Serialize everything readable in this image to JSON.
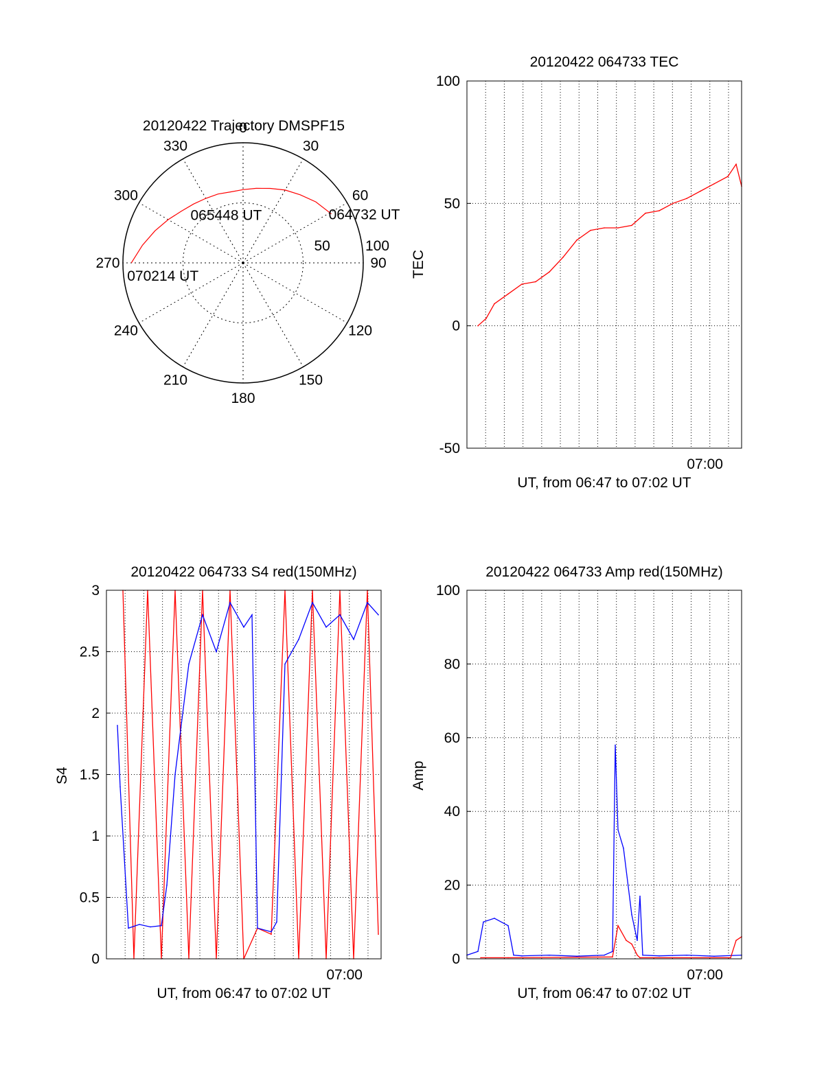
{
  "colors": {
    "red": "#ff0000",
    "blue": "#0000ff",
    "axis": "#000000"
  },
  "chart_data": [
    {
      "type": "polar",
      "title": "20120422 Trajectory DMSPF15",
      "angle_ticks": [
        "0",
        "30",
        "60",
        "90",
        "120",
        "150",
        "180",
        "210",
        "240",
        "270",
        "300",
        "330"
      ],
      "radial_ticks": [
        "50",
        "100"
      ],
      "trajectory": {
        "color": "#ff0000",
        "azimuth_deg": [
          61,
          50,
          40,
          30,
          20,
          10,
          0,
          -10,
          -20,
          -30,
          -40,
          -50,
          -60,
          -70,
          -80,
          -90
        ],
        "radius": [
          84,
          79,
          74,
          70,
          66,
          63,
          61,
          60,
          61,
          62,
          64,
          67,
          72,
          78,
          85,
          93
        ]
      },
      "annotations": [
        {
          "text": "064732 UT",
          "point": "start"
        },
        {
          "text": "065448 UT",
          "point": "middle"
        },
        {
          "text": "070214 UT",
          "point": "end"
        }
      ]
    },
    {
      "type": "line",
      "title": "20120422 064733 TEC",
      "ylabel": "TEC",
      "xlabel": "UT, from 06:47 to 07:02 UT",
      "x_ticks": [
        "07:00"
      ],
      "ylim": [
        -50,
        100
      ],
      "y_ticks": [
        -50,
        0,
        50,
        100
      ],
      "grid": true,
      "series": [
        {
          "color": "#ff0000",
          "x": [
            0.04,
            0.07,
            0.1,
            0.15,
            0.2,
            0.25,
            0.3,
            0.35,
            0.4,
            0.45,
            0.5,
            0.55,
            0.6,
            0.65,
            0.7,
            0.75,
            0.8,
            0.85,
            0.9,
            0.95,
            0.98,
            1.0
          ],
          "values": [
            0,
            3,
            9,
            13,
            17,
            18,
            22,
            28,
            35,
            39,
            40,
            40,
            41,
            46,
            47,
            50,
            52,
            55,
            58,
            61,
            66,
            57
          ]
        }
      ]
    },
    {
      "type": "line",
      "title": "20120422 064733 S4 red(150MHz)",
      "ylabel": "S4",
      "xlabel": "UT, from 06:47 to 07:02 UT",
      "x_ticks": [
        "07:00"
      ],
      "ylim": [
        0,
        3
      ],
      "y_ticks": [
        "0",
        "0.5",
        "1",
        "1.5",
        "2",
        "2.5",
        "3"
      ],
      "grid": true,
      "series": [
        {
          "color": "#ff0000",
          "x": [
            0.06,
            0.1,
            0.15,
            0.2,
            0.25,
            0.3,
            0.35,
            0.4,
            0.45,
            0.5,
            0.55,
            0.6,
            0.65,
            0.7,
            0.75,
            0.8,
            0.85,
            0.9,
            0.95,
            0.99
          ],
          "values": [
            3,
            0,
            3,
            0,
            3,
            0,
            3,
            0,
            3,
            0,
            0.25,
            0.2,
            3,
            0,
            3,
            0,
            3,
            0,
            3,
            0.2
          ]
        },
        {
          "color": "#0000ff",
          "x": [
            0.04,
            0.05,
            0.08,
            0.12,
            0.16,
            0.2,
            0.22,
            0.25,
            0.3,
            0.35,
            0.4,
            0.45,
            0.5,
            0.53,
            0.55,
            0.6,
            0.62,
            0.65,
            0.7,
            0.75,
            0.8,
            0.85,
            0.9,
            0.95,
            0.99
          ],
          "values": [
            1.9,
            1.4,
            0.25,
            0.28,
            0.26,
            0.27,
            0.6,
            1.5,
            2.4,
            2.8,
            2.5,
            2.9,
            2.7,
            2.8,
            0.25,
            0.22,
            0.3,
            2.4,
            2.6,
            2.9,
            2.7,
            2.8,
            2.6,
            2.9,
            2.8
          ]
        }
      ]
    },
    {
      "type": "line",
      "title": "20120422 064733 Amp red(150MHz)",
      "ylabel": "Amp",
      "xlabel": "UT, from 06:47 to 07:02 UT",
      "x_ticks": [
        "07:00"
      ],
      "ylim": [
        0,
        100
      ],
      "y_ticks": [
        0,
        20,
        40,
        60,
        80,
        100
      ],
      "grid": true,
      "series": [
        {
          "color": "#0000ff",
          "x": [
            0,
            0.04,
            0.06,
            0.1,
            0.15,
            0.17,
            0.2,
            0.3,
            0.4,
            0.5,
            0.53,
            0.54,
            0.55,
            0.57,
            0.6,
            0.62,
            0.63,
            0.64,
            0.7,
            0.8,
            0.9,
            1.0
          ],
          "values": [
            1,
            2,
            10,
            11,
            9,
            1,
            0.8,
            1,
            0.7,
            1,
            2,
            58,
            35,
            30,
            12,
            5,
            17,
            1,
            0.8,
            1,
            0.7,
            1
          ]
        },
        {
          "color": "#ff0000",
          "x": [
            0.05,
            0.15,
            0.53,
            0.55,
            0.58,
            0.6,
            0.62,
            0.63,
            0.96,
            0.98,
            1.0
          ],
          "values": [
            0.3,
            0.3,
            0.5,
            9,
            5,
            4,
            1,
            0.3,
            0.3,
            5,
            6
          ]
        }
      ]
    }
  ]
}
